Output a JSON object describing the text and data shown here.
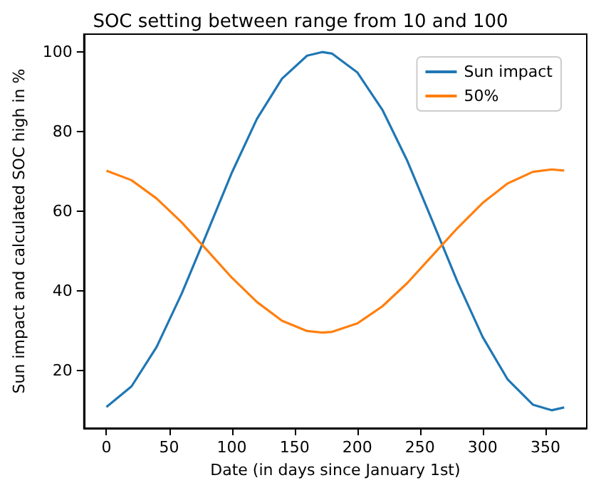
{
  "chart_data": {
    "type": "line",
    "title": "SOC setting between range from 10 and 100",
    "xlabel": "Date (in days since January 1st)",
    "ylabel": "Sun impact and calculated SOC high in %",
    "x": [
      0,
      20,
      40,
      60,
      80,
      100,
      120,
      140,
      160,
      172,
      180,
      200,
      220,
      240,
      260,
      280,
      300,
      320,
      340,
      355,
      365
    ],
    "series": [
      {
        "name": "Sun impact",
        "color": "#1f77b4",
        "values": [
          10.8,
          16.0,
          25.9,
          39.3,
          54.4,
          69.7,
          83.2,
          93.3,
          99.1,
          100,
          99.6,
          94.9,
          85.5,
          72.6,
          57.5,
          42.2,
          28.4,
          17.7,
          11.4,
          10.0,
          10.7
        ]
      },
      {
        "name": "50%",
        "color": "#ff7f0e",
        "values": [
          70.2,
          67.8,
          63.2,
          57.2,
          50.3,
          43.3,
          37.2,
          32.5,
          29.9,
          29.5,
          29.7,
          31.8,
          36.1,
          42.0,
          48.9,
          55.8,
          62.1,
          67.0,
          69.9,
          70.5,
          70.2
        ]
      }
    ],
    "xlim": [
      -18,
      383
    ],
    "xticks": [
      0,
      50,
      100,
      150,
      200,
      250,
      300,
      350
    ],
    "ylim": [
      5.5,
      104.5
    ],
    "yticks": [
      20,
      40,
      60,
      80,
      100
    ],
    "grid": false,
    "legend": "top right",
    "marker": "none",
    "line_style": "solid"
  }
}
